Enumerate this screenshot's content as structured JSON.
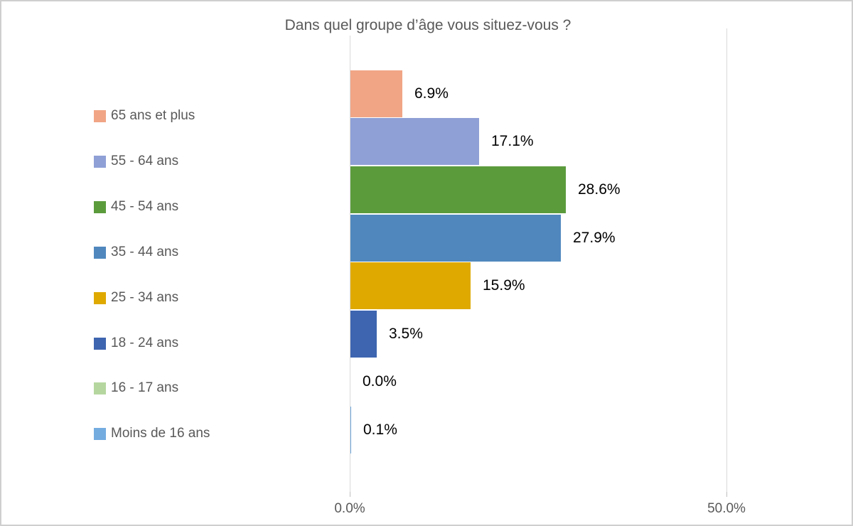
{
  "chart_data": {
    "type": "bar",
    "orientation": "horizontal",
    "title": "Dans quel groupe d’âge vous situez-vous ?",
    "categories": [
      "65 ans et plus",
      "55 - 64 ans",
      "45 - 54 ans",
      "35 - 44 ans",
      "25 - 34 ans",
      "18 - 24 ans",
      "16 - 17 ans",
      "Moins de 16 ans"
    ],
    "values": [
      6.9,
      17.1,
      28.6,
      27.9,
      15.9,
      3.5,
      0.0,
      0.1
    ],
    "data_labels": [
      "6.9%",
      "17.1%",
      "28.6%",
      "27.9%",
      "15.9%",
      "3.5%",
      "0.0%",
      "0.1%"
    ],
    "colors": [
      "#F1A585",
      "#8FA0D6",
      "#5B9B3C",
      "#5088BE",
      "#DFA900",
      "#3E65AF",
      "#B5D79F",
      "#74ACE0"
    ],
    "xlabel": "",
    "ylabel": "",
    "xlim": [
      0,
      50
    ],
    "x_ticks": [
      "0.0%",
      "50.0%"
    ],
    "legend_position": "left",
    "grid": "single vertical gridline at 50%",
    "title_color": "#595959",
    "axis_text_color": "#595959",
    "gridline_color": "#d9d9d9"
  }
}
